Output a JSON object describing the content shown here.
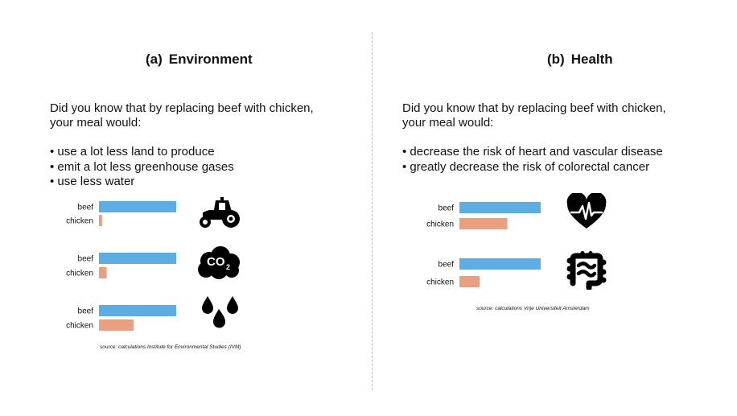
{
  "colors": {
    "beef": "#5dade2",
    "chicken": "#e8a080",
    "icon": "#000000",
    "text": "#111111"
  },
  "panels": {
    "environment": {
      "label": "(a)",
      "title": "Environment",
      "intro": "Did you know that by replacing beef with chicken,\nyour meal would:",
      "bullets": [
        "use a lot less land to produce",
        "emit a lot less greenhouse gases",
        "use less water"
      ],
      "source": "source: calculations Institute for Environmental Studies (IVM)",
      "icons": [
        "tractor-icon",
        "co2-cloud-icon",
        "water-drops-icon"
      ],
      "co2_text": "CO",
      "co2_sub": "2"
    },
    "health": {
      "label": "(b)",
      "title": "Health",
      "intro": "Did you know that by replacing beef with chicken,\nyour meal would:",
      "bullets": [
        "decrease the risk of heart and vascular disease",
        "greatly decrease the risk of colorectal cancer"
      ],
      "source": "source: calculations Vrije Universiteit Amsterdam",
      "icons": [
        "heart-rate-icon",
        "intestine-icon"
      ]
    }
  },
  "chart_data": [
    {
      "type": "bar",
      "orientation": "horizontal",
      "title": "",
      "categories": [
        "beef",
        "chicken"
      ],
      "values": [
        100,
        4
      ],
      "xlim": [
        0,
        100
      ]
    },
    {
      "type": "bar",
      "orientation": "horizontal",
      "title": "",
      "categories": [
        "beef",
        "chicken"
      ],
      "values": [
        100,
        10
      ],
      "xlim": [
        0,
        100
      ]
    },
    {
      "type": "bar",
      "orientation": "horizontal",
      "title": "",
      "categories": [
        "beef",
        "chicken"
      ],
      "values": [
        100,
        45
      ],
      "xlim": [
        0,
        100
      ]
    },
    {
      "type": "bar",
      "orientation": "horizontal",
      "title": "",
      "categories": [
        "beef",
        "chicken"
      ],
      "values": [
        100,
        59
      ],
      "xlim": [
        0,
        100
      ]
    },
    {
      "type": "bar",
      "orientation": "horizontal",
      "title": "",
      "categories": [
        "beef",
        "chicken"
      ],
      "values": [
        100,
        25
      ],
      "xlim": [
        0,
        100
      ]
    }
  ]
}
